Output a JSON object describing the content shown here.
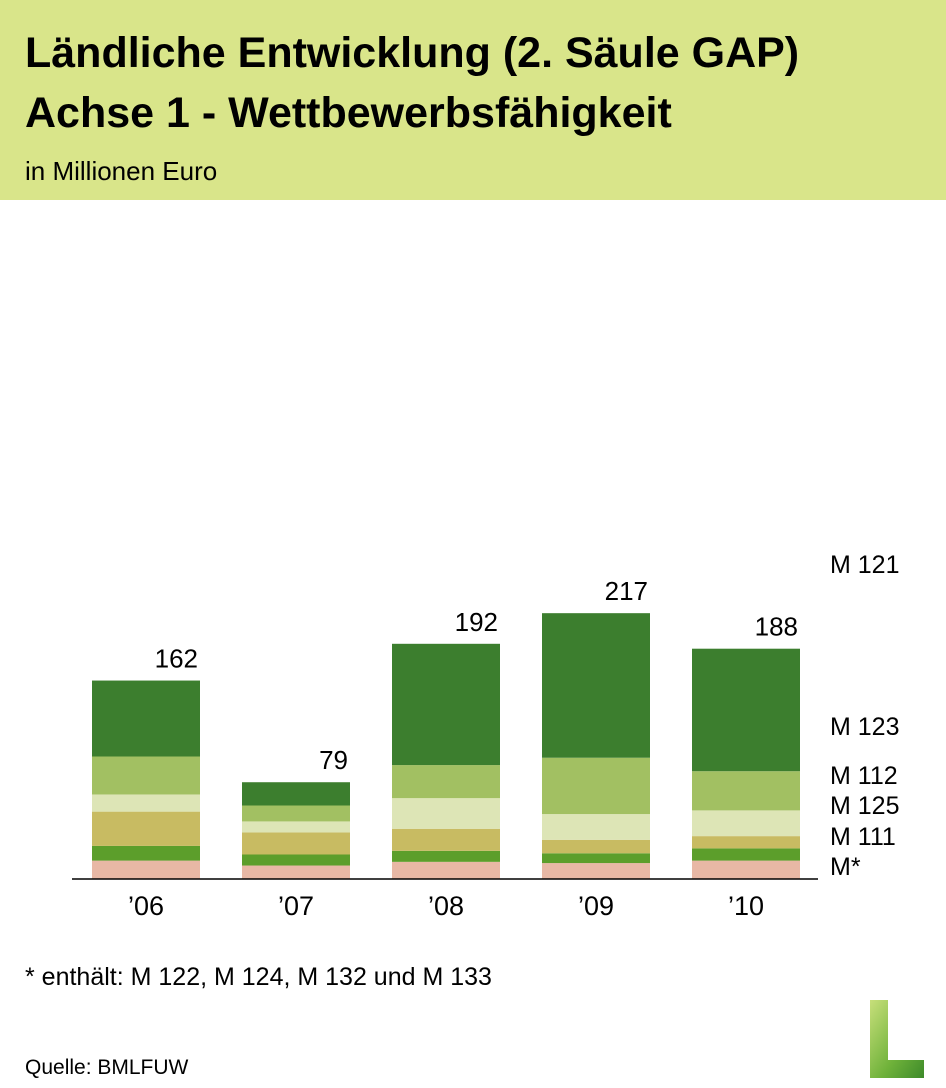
{
  "header": {
    "title_line1": "Ländliche Entwicklung (2. Säule GAP)",
    "title_line2": "Achse 1 - Wettbewerbsfähigkeit",
    "subtitle": "in Millionen Euro"
  },
  "chart_data": {
    "type": "bar",
    "stacked": true,
    "categories": [
      "’06",
      "’07",
      "’08",
      "’09",
      "’10"
    ],
    "totals": [
      162,
      79,
      192,
      217,
      188
    ],
    "series": [
      {
        "name": "M*",
        "color": "#e8b8a5",
        "values": [
          15,
          11,
          14,
          13,
          15
        ]
      },
      {
        "name": "M 111",
        "color": "#5c9e2b",
        "values": [
          12,
          9,
          9,
          8,
          10
        ]
      },
      {
        "name": "M 125",
        "color": "#c8bb62",
        "values": [
          28,
          18,
          18,
          11,
          10
        ]
      },
      {
        "name": "M 112",
        "color": "#dde5b6",
        "values": [
          14,
          9,
          25,
          21,
          21
        ]
      },
      {
        "name": "M 123",
        "color": "#a2c062",
        "values": [
          31,
          13,
          27,
          46,
          32
        ]
      },
      {
        "name": "M 121",
        "color": "#3c7e2e",
        "values": [
          62,
          19,
          99,
          118,
          100
        ]
      }
    ],
    "legend_position": "right",
    "ylim": [
      0,
      240
    ],
    "grid": false
  },
  "footnote": "* enthält: M 122, M 124, M 132 und M 133",
  "source": "Quelle: BMLFUW",
  "logo_letter": "L"
}
